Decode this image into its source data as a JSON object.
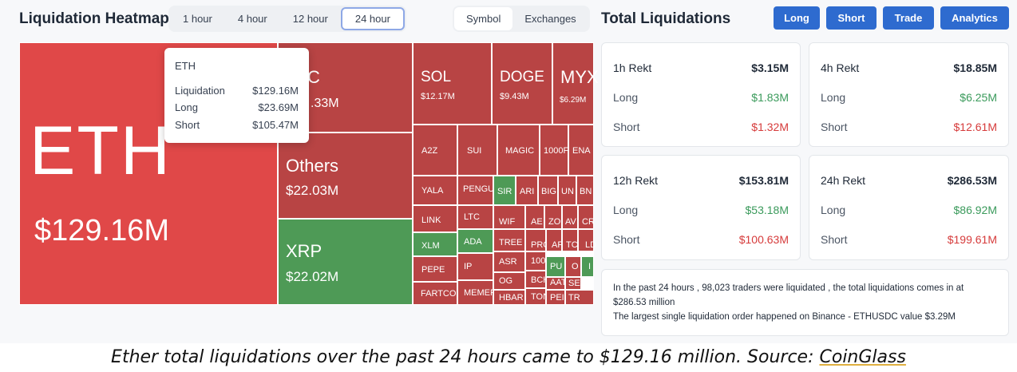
{
  "heatmap": {
    "title": "Liquidation Heatmap",
    "time_tabs": [
      "1 hour",
      "4 hour",
      "12 hour",
      "24 hour"
    ],
    "active_time": "24 hour",
    "view_tabs": [
      "Symbol",
      "Exchanges"
    ],
    "active_view": "Symbol",
    "tiles": {
      "eth": {
        "symbol": "ETH",
        "value": "$129.16M"
      },
      "btc": {
        "symbol": "C",
        "value": ".33M"
      },
      "others": {
        "symbol": "Others",
        "value": "$22.03M"
      },
      "xrp": {
        "symbol": "XRP",
        "value": "$22.02M"
      },
      "sol": {
        "symbol": "SOL",
        "value": "$12.17M"
      },
      "doge": {
        "symbol": "DOGE",
        "value": "$9.43M"
      },
      "myx": {
        "symbol": "MYX",
        "value": "$6.29M"
      },
      "small": [
        "A2Z",
        "SUI",
        "MAGIC",
        "1000F",
        "ENA",
        "YALA",
        "PENGU",
        "SIR",
        "ARI",
        "BIG",
        "UN",
        "BN",
        "LINK",
        "LTC",
        "WIF",
        "AE",
        "ZO",
        "AV",
        "CR",
        "XLM",
        "ADA",
        "TREE",
        "PRC",
        "AF",
        "TC",
        "LD",
        "PEPE",
        "IP",
        "ASR",
        "100",
        "PU",
        "O",
        "I",
        "FARTCOI",
        "MEMEF",
        "OG",
        "BCH",
        "AAT",
        "SE",
        "HBAR",
        "TON",
        "PEI",
        "TR"
      ]
    },
    "tooltip": {
      "symbol": "ETH",
      "rows": [
        {
          "label": "Liquidation",
          "value": "$129.16M"
        },
        {
          "label": "Long",
          "value": "$23.69M"
        },
        {
          "label": "Short",
          "value": "$105.47M"
        }
      ]
    }
  },
  "totals": {
    "title": "Total Liquidations",
    "buttons": [
      "Long",
      "Short",
      "Trade",
      "Analytics"
    ],
    "cards": [
      {
        "title": "1h Rekt",
        "total": "$3.15M",
        "long_label": "Long",
        "long": "$1.83M",
        "short_label": "Short",
        "short": "$1.32M"
      },
      {
        "title": "4h Rekt",
        "total": "$18.85M",
        "long_label": "Long",
        "long": "$6.25M",
        "short_label": "Short",
        "short": "$12.61M"
      },
      {
        "title": "12h Rekt",
        "total": "$153.81M",
        "long_label": "Long",
        "long": "$53.18M",
        "short_label": "Short",
        "short": "$100.63M"
      },
      {
        "title": "24h Rekt",
        "total": "$286.53M",
        "long_label": "Long",
        "long": "$86.92M",
        "short_label": "Short",
        "short": "$199.61M"
      }
    ],
    "summary_line1": "In the past 24 hours , 98,023 traders were liquidated , the total liquidations comes in at $286.53 million",
    "summary_line2": "The largest single liquidation order happened on Binance - ETHUSDC value $3.29M"
  },
  "caption": {
    "text": "Ether total liquidations over the past 24 hours came to $129.16 million. Source: ",
    "link": "CoinGlass"
  },
  "colors": {
    "accent": "#2e6bcf",
    "red_tile": "#c44a4a",
    "eth_tile": "#e04848",
    "green_tile": "#4e9a56",
    "long_green": "#3a9a5b",
    "short_red": "#d63b3b"
  }
}
